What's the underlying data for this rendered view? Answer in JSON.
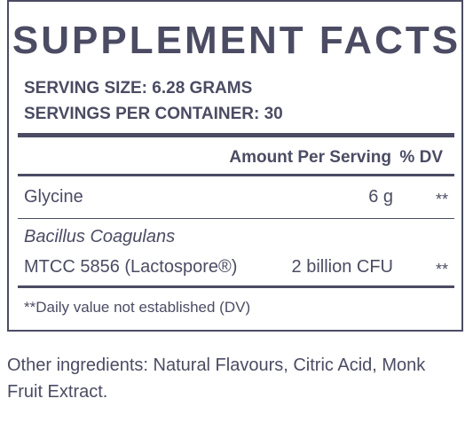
{
  "title": "SUPPLEMENT FACTS",
  "serving_size": "SERVING SIZE: 6.28 GRAMS",
  "servings_per_container": "SERVINGS PER CONTAINER: 30",
  "table": {
    "header": [
      "Amount Per Serving",
      "% DV"
    ],
    "rows": [
      {
        "name": "Glycine",
        "amount": "6 g",
        "dv": "**"
      },
      {
        "name": "Bacillus Coagulans",
        "strain": "MTCC 5856 (Lactospore®)",
        "amount": "2 billion CFU",
        "dv": "**"
      }
    ]
  },
  "footnote": "**Daily value not established (DV)",
  "other_ingredients": "Other ingredients: Natural Flavours, Citric Acid, Monk Fruit Extract."
}
